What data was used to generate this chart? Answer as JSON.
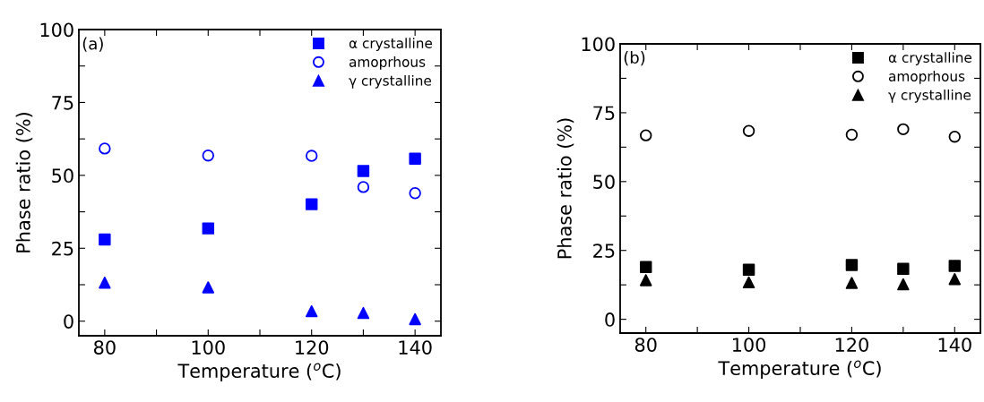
{
  "chart_data": [
    {
      "type": "scatter",
      "x": [
        80,
        100,
        120,
        130,
        140
      ],
      "xlabel": "Temperature ($^{o}$C)",
      "ylabel": "Phase ratio (%)",
      "annotations": [
        "(a)"
      ],
      "legend": "top right",
      "grid": false,
      "xlim": [
        75,
        145
      ],
      "xticks": [
        80,
        {
          "value": 90,
          "label": null
        },
        100,
        {
          "value": 110,
          "label": null
        },
        120,
        {
          "value": 130,
          "label": null
        },
        140
      ],
      "ylim": [
        -5,
        100
      ],
      "yticks": [
        0,
        {
          "value": 12.5,
          "label": null
        },
        25,
        {
          "value": 37.5,
          "label": null
        },
        50,
        {
          "value": 62.5,
          "label": null
        },
        75,
        {
          "value": 87.5,
          "label": null
        },
        100
      ],
      "series": [
        {
          "name": "α crystalline",
          "color": "#0000ff",
          "marker": "square",
          "values": [
            28.0,
            31.8,
            40.1,
            51.5,
            55.7
          ]
        },
        {
          "name": "amoprhous",
          "color": "#0000ff",
          "marker": "circle",
          "values": [
            59.2,
            56.8,
            56.7,
            46.0,
            43.9
          ]
        },
        {
          "name": "γ crystalline",
          "color": "#0000ff",
          "marker": "triangle",
          "values": [
            13.2,
            11.6,
            3.4,
            2.8,
            0.7
          ]
        }
      ]
    },
    {
      "type": "scatter",
      "x": [
        80,
        100,
        120,
        130,
        140
      ],
      "xlabel": "Temperature ($^{o}$C)",
      "ylabel": "Phase ratio (%)",
      "annotations": [
        "(b)"
      ],
      "legend": "top right",
      "grid": false,
      "xlim": [
        75,
        145
      ],
      "xticks": [
        80,
        {
          "value": 90,
          "label": null
        },
        100,
        {
          "value": 110,
          "label": null
        },
        120,
        {
          "value": 130,
          "label": null
        },
        140
      ],
      "ylim": [
        -5,
        100
      ],
      "yticks": [
        0,
        {
          "value": 12.5,
          "label": null
        },
        25,
        {
          "value": 37.5,
          "label": null
        },
        50,
        {
          "value": 62.5,
          "label": null
        },
        75,
        {
          "value": 87.5,
          "label": null
        },
        100
      ],
      "series": [
        {
          "name": "α crystalline",
          "color": "#000000",
          "marker": "square",
          "values": [
            19.0,
            18.0,
            19.7,
            18.3,
            19.4
          ]
        },
        {
          "name": "amoprhous",
          "color": "#000000",
          "marker": "circle",
          "values": [
            66.8,
            68.4,
            67.0,
            69.0,
            66.3
          ]
        },
        {
          "name": "γ crystalline",
          "color": "#000000",
          "marker": "triangle",
          "values": [
            14.2,
            13.4,
            13.2,
            12.7,
            14.6
          ]
        }
      ]
    }
  ]
}
